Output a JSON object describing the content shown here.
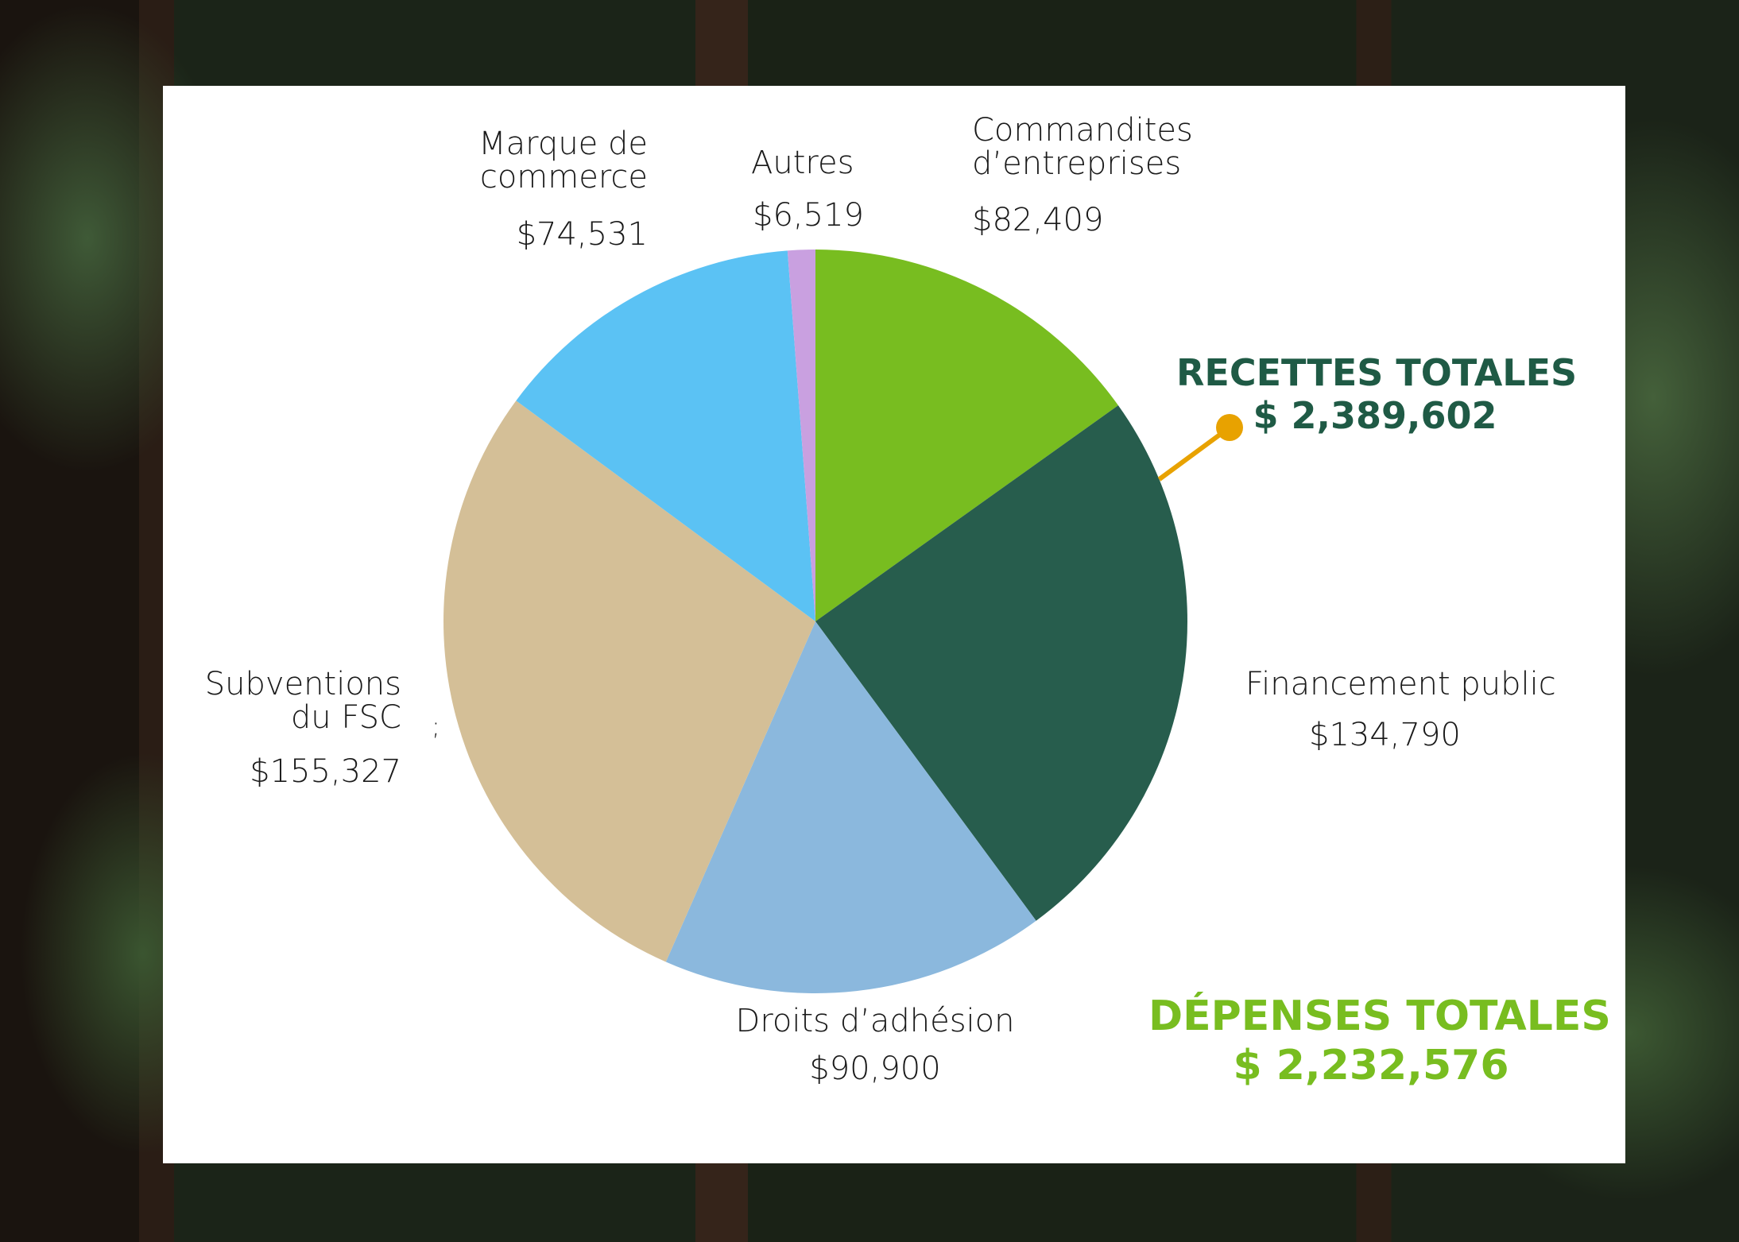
{
  "chart_data": {
    "type": "pie",
    "start": "top, clockwise",
    "slices": [
      {
        "name": "Commandites d’entreprises",
        "lines": [
          "Commandites",
          "d’entreprises"
        ],
        "label": "$82,409",
        "value": 82409,
        "color": "#78bd20"
      },
      {
        "name": "Financement public",
        "lines": [
          "Financement public"
        ],
        "label": "$134,790",
        "value": 134790,
        "color": "#275d4d"
      },
      {
        "name": "Droits d’adhésion",
        "lines": [
          "Droits d’adhésion"
        ],
        "label": "$90,900",
        "value": 90900,
        "color": "#8bb8dd"
      },
      {
        "name": "Subventions du FSC",
        "lines": [
          "Subventions",
          "du FSC"
        ],
        "label": "$155,327",
        "value": 155327,
        "color": "#d4bf97"
      },
      {
        "name": "Marque de commerce",
        "lines": [
          "Marque de",
          "commerce"
        ],
        "label": "$74,531",
        "value": 74531,
        "color": "#5bc2f4"
      },
      {
        "name": "Autres",
        "lines": [
          "Autres"
        ],
        "label": "$6,519",
        "value": 6519,
        "color": "#c9a0e0"
      }
    ],
    "stray_mark": ";"
  },
  "totals": {
    "revenue": {
      "title": "RECETTES TOTALES",
      "amount": "$ 2,389,602",
      "color": "#1f5a45",
      "pointer_color": "#e8a200"
    },
    "expenses": {
      "title": "DÉPENSES TOTALES",
      "amount": "$ 2,232,576",
      "color": "#78bd20"
    }
  }
}
